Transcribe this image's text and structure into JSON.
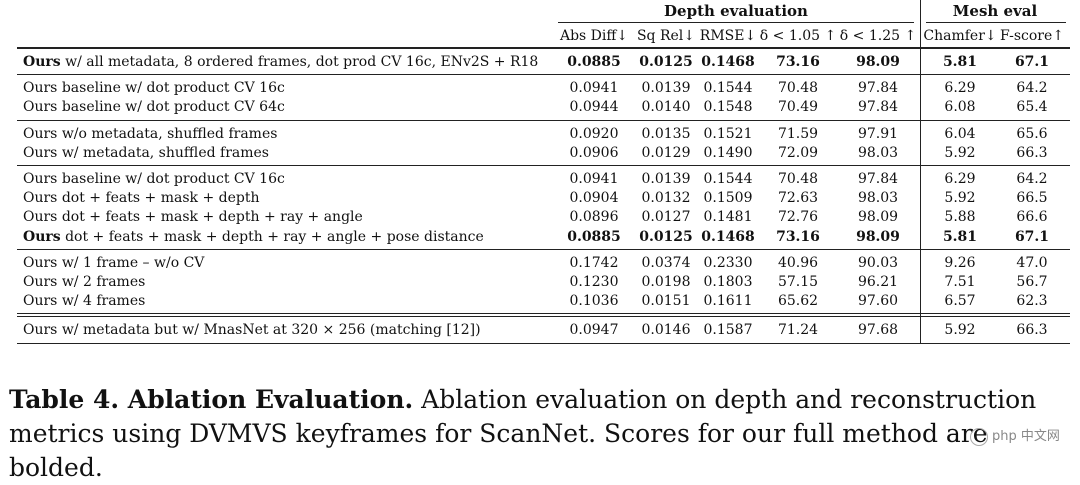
{
  "table": {
    "group_headers": [
      "Depth evaluation",
      "Mesh eval"
    ],
    "columns": [
      "Abs Diff↓",
      "Sq Rel↓",
      "RMSE↓",
      "δ < 1.05 ↑",
      "δ < 1.25 ↑",
      "Chamfer↓",
      "F-score↑"
    ],
    "groups": [
      {
        "rows": [
          {
            "bold_label": "Ours",
            "label": " w/ all metadata, 8 ordered frames, dot prod CV 16c, ENv2S + R18",
            "values": [
              "0.0885",
              "0.0125",
              "0.1468",
              "73.16",
              "98.09",
              "5.81",
              "67.1"
            ],
            "bold_values": true
          }
        ]
      },
      {
        "rows": [
          {
            "bold_label": "",
            "label": "Ours baseline w/ dot product CV 16c",
            "values": [
              "0.0941",
              "0.0139",
              "0.1544",
              "70.48",
              "97.84",
              "6.29",
              "64.2"
            ],
            "bold_values": false
          },
          {
            "bold_label": "",
            "label": "Ours baseline w/ dot product CV 64c",
            "values": [
              "0.0944",
              "0.0140",
              "0.1548",
              "70.49",
              "97.84",
              "6.08",
              "65.4"
            ],
            "bold_values": false
          }
        ]
      },
      {
        "rows": [
          {
            "bold_label": "",
            "label": "Ours w/o metadata, shuffled frames",
            "values": [
              "0.0920",
              "0.0135",
              "0.1521",
              "71.59",
              "97.91",
              "6.04",
              "65.6"
            ],
            "bold_values": false
          },
          {
            "bold_label": "",
            "label": "Ours w/ metadata, shuffled frames",
            "values": [
              "0.0906",
              "0.0129",
              "0.1490",
              "72.09",
              "98.03",
              "5.92",
              "66.3"
            ],
            "bold_values": false
          }
        ]
      },
      {
        "rows": [
          {
            "bold_label": "",
            "label": "Ours baseline w/ dot product CV 16c",
            "values": [
              "0.0941",
              "0.0139",
              "0.1544",
              "70.48",
              "97.84",
              "6.29",
              "64.2"
            ],
            "bold_values": false
          },
          {
            "bold_label": "",
            "label": "Ours dot + feats + mask + depth",
            "values": [
              "0.0904",
              "0.0132",
              "0.1509",
              "72.63",
              "98.03",
              "5.92",
              "66.5"
            ],
            "bold_values": false
          },
          {
            "bold_label": "",
            "label": "Ours dot + feats + mask + depth + ray + angle",
            "values": [
              "0.0896",
              "0.0127",
              "0.1481",
              "72.76",
              "98.09",
              "5.88",
              "66.6"
            ],
            "bold_values": false
          },
          {
            "bold_label": "Ours",
            "label": " dot + feats + mask + depth + ray + angle + pose distance",
            "values": [
              "0.0885",
              "0.0125",
              "0.1468",
              "73.16",
              "98.09",
              "5.81",
              "67.1"
            ],
            "bold_values": true
          }
        ]
      },
      {
        "rows": [
          {
            "bold_label": "",
            "label": "Ours w/ 1 frame – w/o CV",
            "values": [
              "0.1742",
              "0.0374",
              "0.2330",
              "40.96",
              "90.03",
              "9.26",
              "47.0"
            ],
            "bold_values": false
          },
          {
            "bold_label": "",
            "label": "Ours w/ 2 frames",
            "values": [
              "0.1230",
              "0.0198",
              "0.1803",
              "57.15",
              "96.21",
              "7.51",
              "56.7"
            ],
            "bold_values": false
          },
          {
            "bold_label": "",
            "label": "Ours w/ 4 frames",
            "values": [
              "0.1036",
              "0.0151",
              "0.1611",
              "65.62",
              "97.60",
              "6.57",
              "62.3"
            ],
            "bold_values": false
          }
        ]
      },
      {
        "rows": [
          {
            "bold_label": "",
            "label": "Ours w/ metadata but w/ MnasNet at 320 × 256 (matching [12])",
            "values": [
              "0.0947",
              "0.0146",
              "0.1587",
              "71.24",
              "97.68",
              "5.92",
              "66.3"
            ],
            "bold_values": false
          }
        ]
      }
    ]
  },
  "caption": {
    "label": "Table 4. Ablation Evaluation.",
    "text": " Ablation evaluation on depth and reconstruction metrics using DVMVS keyframes for ScanNet. Scores for our full method are bolded."
  },
  "watermark": "php 中文网"
}
